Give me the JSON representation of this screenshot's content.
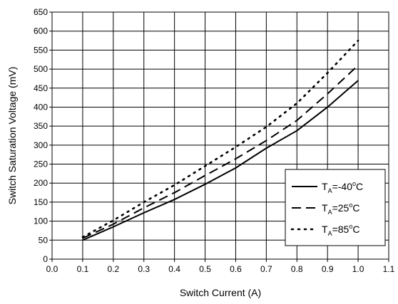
{
  "chart_data": {
    "type": "line",
    "title": "",
    "xlabel": "Switch Current (A)",
    "ylabel": "Switch Saturation Voltage (mV)",
    "xlim": [
      0.0,
      1.1
    ],
    "ylim": [
      0,
      650
    ],
    "xticks": [
      "0.0",
      "0.1",
      "0.2",
      "0.3",
      "0.4",
      "0.5",
      "0.6",
      "0.7",
      "0.8",
      "0.9",
      "1.0",
      "1.1"
    ],
    "yticks": [
      "0",
      "50",
      "100",
      "150",
      "200",
      "250",
      "300",
      "350",
      "400",
      "450",
      "500",
      "550",
      "600",
      "650"
    ],
    "grid": true,
    "legend_position": "bottom-right",
    "x": [
      0.1,
      0.2,
      0.3,
      0.4,
      0.5,
      0.6,
      0.7,
      0.8,
      0.9,
      1.0
    ],
    "series": [
      {
        "name": "TA=-40oC",
        "legend": {
          "main": "T",
          "sub": "A",
          "mid": "=-40",
          "sup": "o",
          "end": "C"
        },
        "style": "solid",
        "values": [
          50,
          85,
          122,
          157,
          197,
          240,
          292,
          338,
          400,
          470
        ]
      },
      {
        "name": "TA=25oC",
        "legend": {
          "main": "T",
          "sub": "A",
          "mid": "=25",
          "sup": "o",
          "end": "C"
        },
        "style": "dash",
        "values": [
          55,
          92,
          135,
          175,
          220,
          264,
          312,
          365,
          435,
          510
        ]
      },
      {
        "name": "TA=85oC",
        "legend": {
          "main": "T",
          "sub": "A",
          "mid": "=85",
          "sup": "o",
          "end": "C"
        },
        "style": "dot",
        "values": [
          58,
          102,
          150,
          195,
          245,
          295,
          348,
          410,
          490,
          575
        ]
      }
    ],
    "colors": {
      "line": "#000000",
      "grid": "#000000",
      "background": "#ffffff"
    }
  }
}
